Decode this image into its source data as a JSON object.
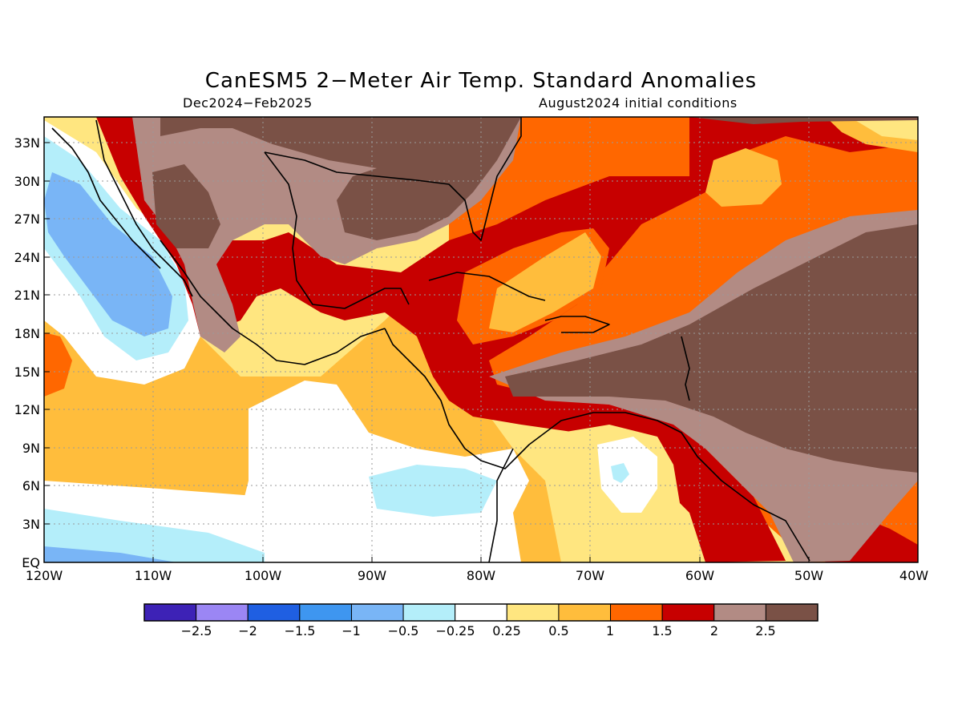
{
  "title": "CanESM5 2−Meter Air Temp. Standard Anomalies",
  "subtitle_left": "Dec2024−Feb2025",
  "subtitle_right": "August2024 initial conditions",
  "lat_labels": [
    "33N",
    "30N",
    "27N",
    "24N",
    "21N",
    "18N",
    "15N",
    "12N",
    "9N",
    "6N",
    "3N",
    "EQ"
  ],
  "lon_labels": [
    "120W",
    "110W",
    "100W",
    "90W",
    "80W",
    "70W",
    "60W",
    "50W",
    "40W"
  ],
  "legend": {
    "labels": [
      "−2.5",
      "−2",
      "−1.5",
      "−1",
      "−0.5",
      "−0.25",
      "0.25",
      "0.5",
      "1",
      "1.5",
      "2",
      "2.5"
    ],
    "colors": [
      "#3d22b6",
      "#9b86f4",
      "#1f5fe2",
      "#3e96f0",
      "#79b5f6",
      "#b4eefa",
      "#ffffff",
      "#ffe680",
      "#ffbd3c",
      "#ff6700",
      "#c70000",
      "#b28b84",
      "#7a5146"
    ]
  }
}
